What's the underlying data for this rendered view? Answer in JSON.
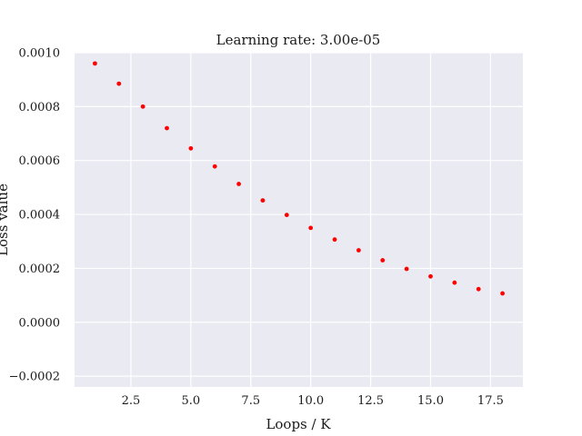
{
  "chart_data": {
    "type": "scatter",
    "title": "Learning rate: 3.00e-05",
    "xlabel": "Loops / K",
    "ylabel": "Loss value",
    "xlim": [
      0.15,
      18.85
    ],
    "ylim": [
      -0.00024,
      0.001
    ],
    "x_ticks": [
      2.5,
      5.0,
      7.5,
      10.0,
      12.5,
      15.0,
      17.5
    ],
    "x_tick_labels": [
      "2.5",
      "5.0",
      "7.5",
      "10.0",
      "12.5",
      "15.0",
      "17.5"
    ],
    "y_ticks": [
      -0.0002,
      0.0,
      0.0002,
      0.0004,
      0.0006,
      0.0008,
      0.001
    ],
    "y_tick_labels": [
      "−0.0002",
      "0.0000",
      "0.0002",
      "0.0004",
      "0.0006",
      "0.0008",
      "0.0010"
    ],
    "grid": true,
    "background_color": "#eaeaf2",
    "grid_color": "#ffffff",
    "marker_color": "#ff0000",
    "series": [
      {
        "x": [
          1,
          2,
          3,
          4,
          5,
          6,
          7,
          8,
          9,
          10,
          11,
          12,
          13,
          14,
          15,
          16,
          17,
          18
        ],
        "y": [
          0.00096,
          0.000885,
          0.0008,
          0.00072,
          0.000645,
          0.000578,
          0.000513,
          0.000452,
          0.000398,
          0.00035,
          0.000307,
          0.000267,
          0.00023,
          0.000198,
          0.00017,
          0.000147,
          0.000123,
          0.000107
        ]
      }
    ]
  }
}
